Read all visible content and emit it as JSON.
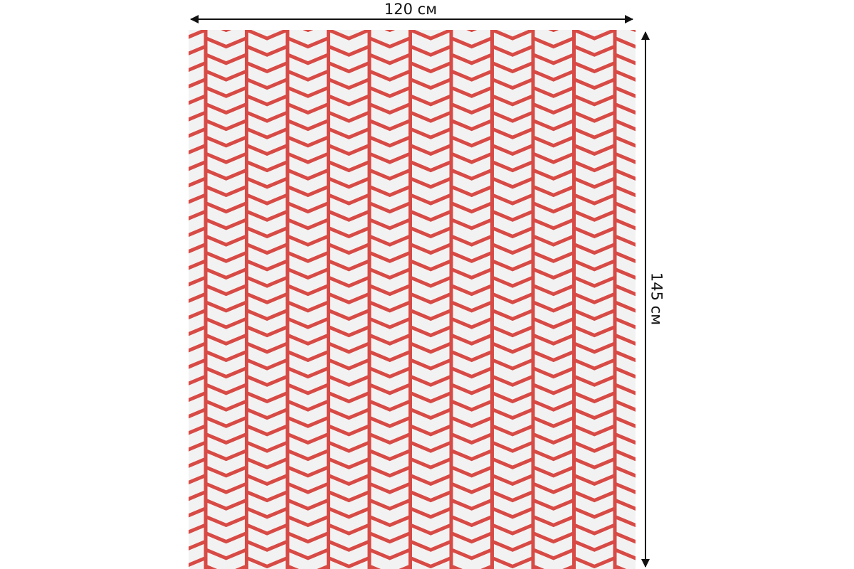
{
  "dimensions": {
    "width_label": "120 см",
    "height_label": "145 см"
  },
  "pattern": {
    "style": "vertical chevron stripes",
    "line_color": "#d84a45",
    "background_color": "#f2f2f2"
  },
  "icons": {
    "width_arrow": "horizontal-double-arrow-icon",
    "height_arrow": "vertical-double-arrow-icon"
  }
}
